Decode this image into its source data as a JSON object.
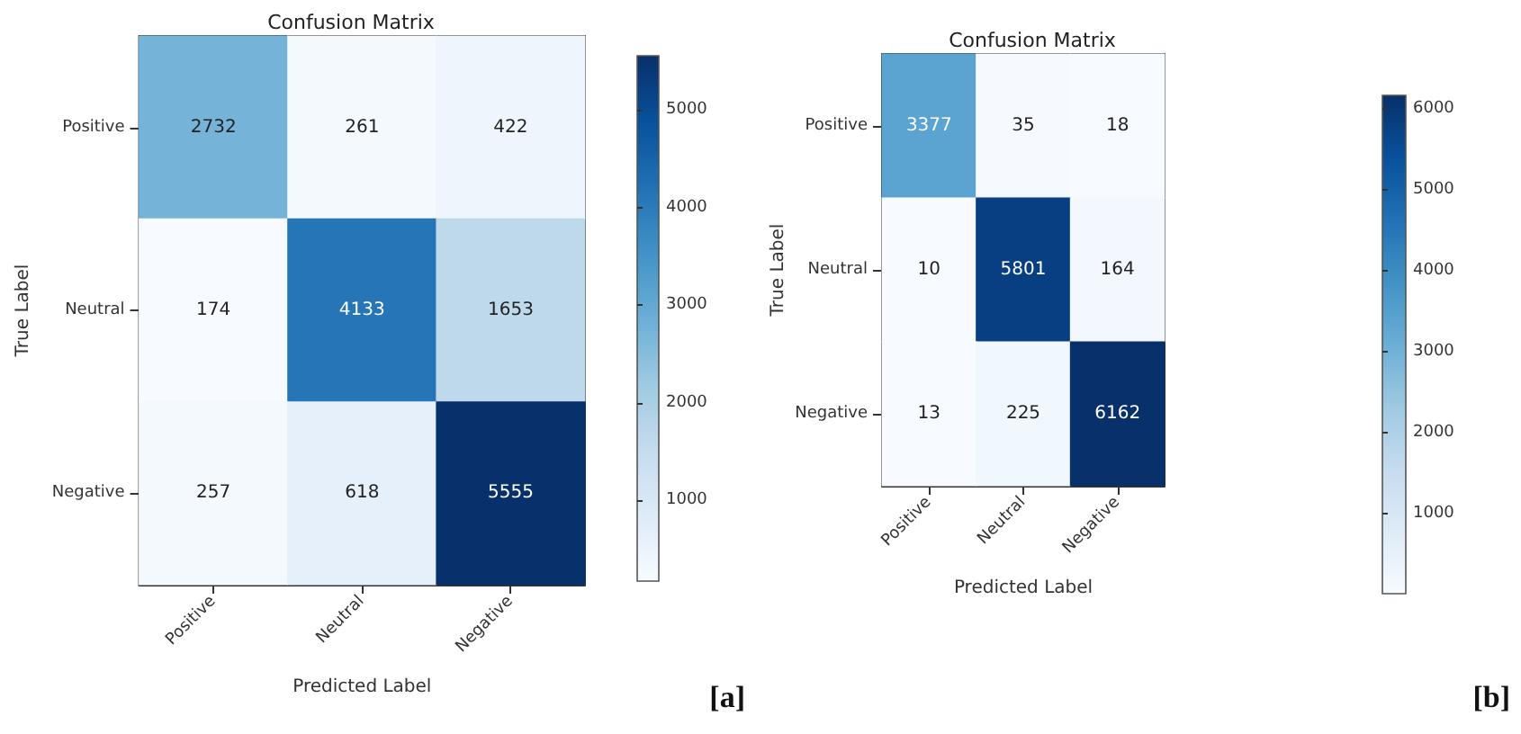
{
  "chart_data": [
    {
      "type": "heatmap",
      "title": "Confusion Matrix",
      "xlabel": "Predicted Label",
      "ylabel": "True Label",
      "categories": [
        "Positive",
        "Neutral",
        "Negative"
      ],
      "y_categories": [
        "Positive",
        "Neutral",
        "Negative"
      ],
      "cells": [
        [
          2732,
          261,
          422
        ],
        [
          174,
          4133,
          1653
        ],
        [
          257,
          618,
          5555
        ]
      ],
      "clim": [
        174,
        5555
      ],
      "cticks": [
        1000,
        2000,
        3000,
        4000,
        5000
      ],
      "data_labels": true,
      "annotations": [
        "[a]"
      ]
    },
    {
      "type": "heatmap",
      "title": "Confusion Matrix",
      "xlabel": "Predicted Label",
      "ylabel": "True Label",
      "categories": [
        "Positive",
        "Neutral",
        "Negative"
      ],
      "y_categories": [
        "Positive",
        "Neutral",
        "Negative"
      ],
      "cells": [
        [
          3377,
          35,
          18
        ],
        [
          10,
          5801,
          164
        ],
        [
          13,
          225,
          6162
        ]
      ],
      "clim": [
        10,
        6162
      ],
      "cticks": [
        1000,
        2000,
        3000,
        4000,
        5000,
        6000
      ],
      "data_labels": true,
      "annotations": [
        "[b]"
      ]
    }
  ]
}
